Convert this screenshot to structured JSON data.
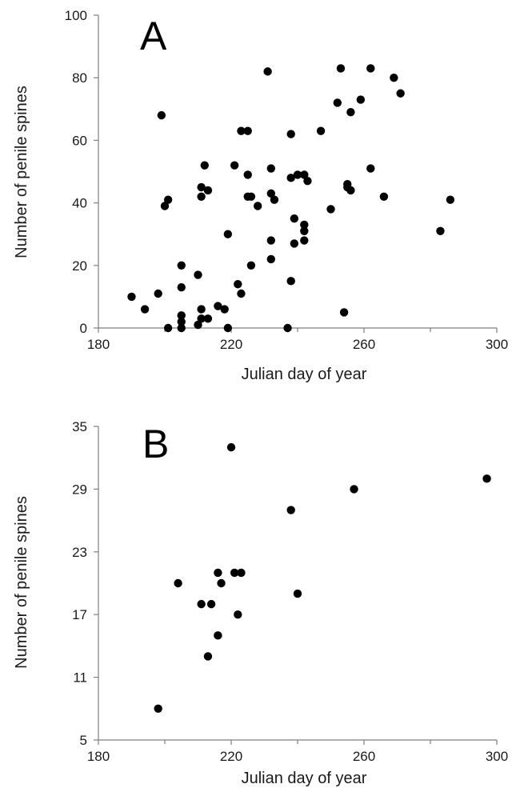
{
  "chart_data": [
    {
      "type": "scatter",
      "panel_label": "A",
      "xlabel": "Julian day of year",
      "ylabel": "Number of penile spines",
      "xlim": [
        180,
        300
      ],
      "ylim": [
        0,
        100
      ],
      "x_ticks": [
        180,
        220,
        260,
        300
      ],
      "y_ticks": [
        0,
        20,
        40,
        60,
        80,
        100
      ],
      "grid": false,
      "marker_color": "#000000",
      "points": [
        [
          190,
          10
        ],
        [
          194,
          6
        ],
        [
          198,
          11
        ],
        [
          199,
          68
        ],
        [
          200,
          39
        ],
        [
          201,
          41
        ],
        [
          201,
          0
        ],
        [
          205,
          20
        ],
        [
          205,
          13
        ],
        [
          205,
          4
        ],
        [
          205,
          2
        ],
        [
          205,
          0
        ],
        [
          210,
          17
        ],
        [
          210,
          1
        ],
        [
          211,
          42
        ],
        [
          211,
          45
        ],
        [
          211,
          6
        ],
        [
          211,
          3
        ],
        [
          212,
          52
        ],
        [
          213,
          44
        ],
        [
          213,
          3
        ],
        [
          216,
          7
        ],
        [
          218,
          6
        ],
        [
          219,
          30
        ],
        [
          219,
          0
        ],
        [
          221,
          52
        ],
        [
          222,
          14
        ],
        [
          223,
          63
        ],
        [
          223,
          11
        ],
        [
          225,
          63
        ],
        [
          225,
          49
        ],
        [
          225,
          42
        ],
        [
          226,
          42
        ],
        [
          226,
          20
        ],
        [
          228,
          39
        ],
        [
          231,
          82
        ],
        [
          232,
          51
        ],
        [
          232,
          43
        ],
        [
          232,
          28
        ],
        [
          232,
          22
        ],
        [
          233,
          41
        ],
        [
          237,
          0
        ],
        [
          238,
          62
        ],
        [
          238,
          48
        ],
        [
          238,
          15
        ],
        [
          239,
          35
        ],
        [
          239,
          27
        ],
        [
          240,
          49
        ],
        [
          242,
          49
        ],
        [
          242,
          33
        ],
        [
          242,
          31
        ],
        [
          242,
          28
        ],
        [
          243,
          47
        ],
        [
          247,
          63
        ],
        [
          250,
          38
        ],
        [
          252,
          72
        ],
        [
          253,
          83
        ],
        [
          254,
          5
        ],
        [
          255,
          46
        ],
        [
          255,
          45
        ],
        [
          256,
          69
        ],
        [
          256,
          44
        ],
        [
          259,
          73
        ],
        [
          262,
          83
        ],
        [
          262,
          51
        ],
        [
          266,
          42
        ],
        [
          269,
          80
        ],
        [
          271,
          75
        ],
        [
          283,
          31
        ],
        [
          286,
          41
        ]
      ]
    },
    {
      "type": "scatter",
      "panel_label": "B",
      "xlabel": "Julian day of year",
      "ylabel": "Number of penile spines",
      "xlim": [
        180,
        300
      ],
      "ylim": [
        5,
        35
      ],
      "x_ticks": [
        180,
        220,
        260,
        300
      ],
      "y_ticks": [
        5,
        11,
        17,
        23,
        29,
        35
      ],
      "grid": false,
      "marker_color": "#000000",
      "points": [
        [
          198,
          8
        ],
        [
          204,
          20
        ],
        [
          211,
          18
        ],
        [
          213,
          13
        ],
        [
          214,
          18
        ],
        [
          216,
          15
        ],
        [
          216,
          21
        ],
        [
          217,
          20
        ],
        [
          220,
          33
        ],
        [
          221,
          21
        ],
        [
          222,
          17
        ],
        [
          223,
          21
        ],
        [
          238,
          27
        ],
        [
          240,
          19
        ],
        [
          257,
          29
        ],
        [
          297,
          30
        ]
      ]
    }
  ]
}
